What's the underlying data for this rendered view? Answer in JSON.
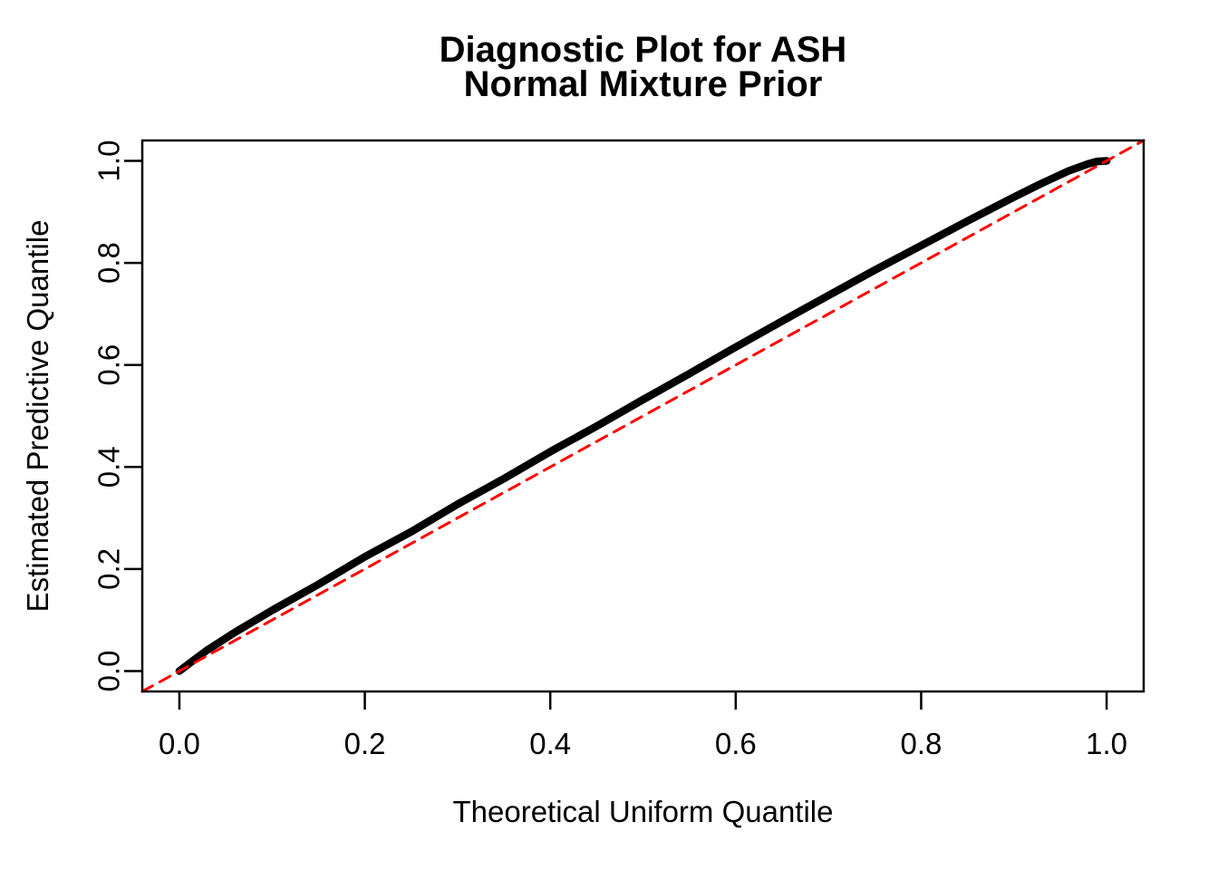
{
  "chart_data": {
    "type": "line",
    "title": "Diagnostic Plot for ASH",
    "subtitle": "Normal Mixture Prior",
    "xlabel": "Theoretical Uniform Quantile",
    "ylabel": "Estimated Predictive Quantile",
    "xlim": [
      -0.04,
      1.04
    ],
    "ylim": [
      -0.04,
      1.04
    ],
    "x_ticks": [
      0.0,
      0.2,
      0.4,
      0.6,
      0.8,
      1.0
    ],
    "y_ticks": [
      0.0,
      0.2,
      0.4,
      0.6,
      0.8,
      1.0
    ],
    "x_tick_labels": [
      "0.0",
      "0.2",
      "0.4",
      "0.6",
      "0.8",
      "1.0"
    ],
    "y_tick_labels": [
      "0.0",
      "0.2",
      "0.4",
      "0.6",
      "0.8",
      "1.0"
    ],
    "grid": false,
    "legend": "none",
    "background_color": "#ffffff",
    "axis_color": "#000000",
    "series": [
      {
        "name": "estimated-quantiles",
        "label": "Estimated predictive quantile curve",
        "color": "#000000",
        "line_width": 8.5,
        "dash": null,
        "x": [
          0.0,
          0.01,
          0.03,
          0.06,
          0.1,
          0.15,
          0.2,
          0.25,
          0.3,
          0.35,
          0.4,
          0.45,
          0.5,
          0.55,
          0.6,
          0.65,
          0.7,
          0.75,
          0.8,
          0.85,
          0.9,
          0.93,
          0.96,
          0.98,
          0.99,
          1.0
        ],
        "y": [
          0.0,
          0.014,
          0.041,
          0.076,
          0.119,
          0.17,
          0.224,
          0.273,
          0.327,
          0.377,
          0.43,
          0.48,
          0.532,
          0.583,
          0.635,
          0.686,
          0.736,
          0.786,
          0.834,
          0.882,
          0.929,
          0.956,
          0.981,
          0.994,
          0.999,
          1.0
        ]
      },
      {
        "name": "identity-reference-line",
        "label": "y = x reference line",
        "color": "#FF0000",
        "line_width": 3,
        "dash": [
          13,
          9
        ],
        "x": [
          -0.04,
          1.04
        ],
        "y": [
          -0.04,
          1.04
        ]
      }
    ]
  }
}
